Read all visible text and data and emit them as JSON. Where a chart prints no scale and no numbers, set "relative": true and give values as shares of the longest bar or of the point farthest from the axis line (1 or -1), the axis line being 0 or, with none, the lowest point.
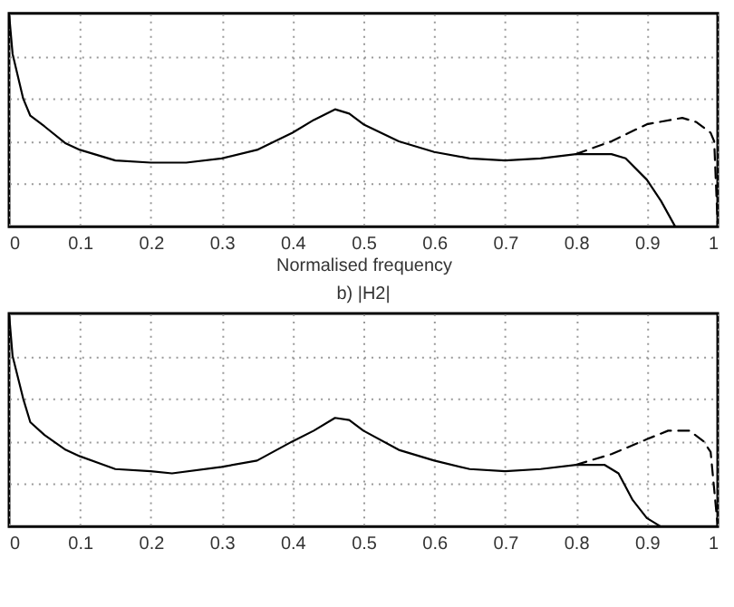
{
  "chart_data": [
    {
      "type": "line",
      "xlabel": "Normalised frequency",
      "relative": true,
      "xlim": [
        0,
        1
      ],
      "xticks": [
        0,
        0.1,
        0.2,
        0.3,
        0.4,
        0.5,
        0.6,
        0.7,
        0.8,
        0.9,
        1
      ],
      "grid": true,
      "tick_labels": "x",
      "series": [
        {
          "color": "#000000",
          "line_style": "solid",
          "x": [
            0,
            0.005,
            0.02,
            0.03,
            0.05,
            0.08,
            0.1,
            0.15,
            0.2,
            0.25,
            0.3,
            0.35,
            0.4,
            0.43,
            0.46,
            0.48,
            0.5,
            0.55,
            0.6,
            0.65,
            0.7,
            0.75,
            0.8,
            0.85,
            0.87,
            0.9,
            0.92,
            0.94
          ],
          "values": [
            1.0,
            0.81,
            0.6,
            0.52,
            0.47,
            0.39,
            0.36,
            0.31,
            0.3,
            0.3,
            0.32,
            0.36,
            0.44,
            0.5,
            0.55,
            0.53,
            0.48,
            0.4,
            0.35,
            0.32,
            0.31,
            0.32,
            0.34,
            0.34,
            0.32,
            0.22,
            0.12,
            0.0
          ]
        },
        {
          "color": "#000000",
          "line_style": "dashed",
          "x": [
            0.8,
            0.85,
            0.9,
            0.95,
            0.97,
            0.99,
            0.995,
            1.0
          ],
          "values": [
            0.34,
            0.4,
            0.48,
            0.51,
            0.49,
            0.44,
            0.4,
            0.0
          ]
        }
      ]
    },
    {
      "type": "line",
      "title": "b) |H2|",
      "relative": true,
      "xlim": [
        0,
        1
      ],
      "xticks": [
        0,
        0.1,
        0.2,
        0.3,
        0.4,
        0.5,
        0.6,
        0.7,
        0.8,
        0.9,
        1
      ],
      "grid": true,
      "tick_labels": "x",
      "series": [
        {
          "color": "#000000",
          "line_style": "solid",
          "x": [
            0,
            0.005,
            0.02,
            0.03,
            0.05,
            0.08,
            0.1,
            0.15,
            0.2,
            0.23,
            0.3,
            0.35,
            0.4,
            0.43,
            0.46,
            0.48,
            0.5,
            0.55,
            0.6,
            0.65,
            0.7,
            0.75,
            0.8,
            0.84,
            0.86,
            0.88,
            0.9,
            0.92
          ],
          "values": [
            1.0,
            0.8,
            0.6,
            0.49,
            0.43,
            0.36,
            0.33,
            0.27,
            0.26,
            0.25,
            0.28,
            0.31,
            0.4,
            0.45,
            0.51,
            0.5,
            0.45,
            0.36,
            0.31,
            0.27,
            0.26,
            0.27,
            0.29,
            0.29,
            0.25,
            0.125,
            0.04,
            0.0
          ]
        },
        {
          "color": "#000000",
          "line_style": "dashed",
          "x": [
            0.8,
            0.85,
            0.9,
            0.93,
            0.96,
            0.98,
            0.99,
            1.0
          ],
          "values": [
            0.29,
            0.34,
            0.41,
            0.45,
            0.45,
            0.4,
            0.35,
            0.0
          ]
        }
      ]
    }
  ]
}
